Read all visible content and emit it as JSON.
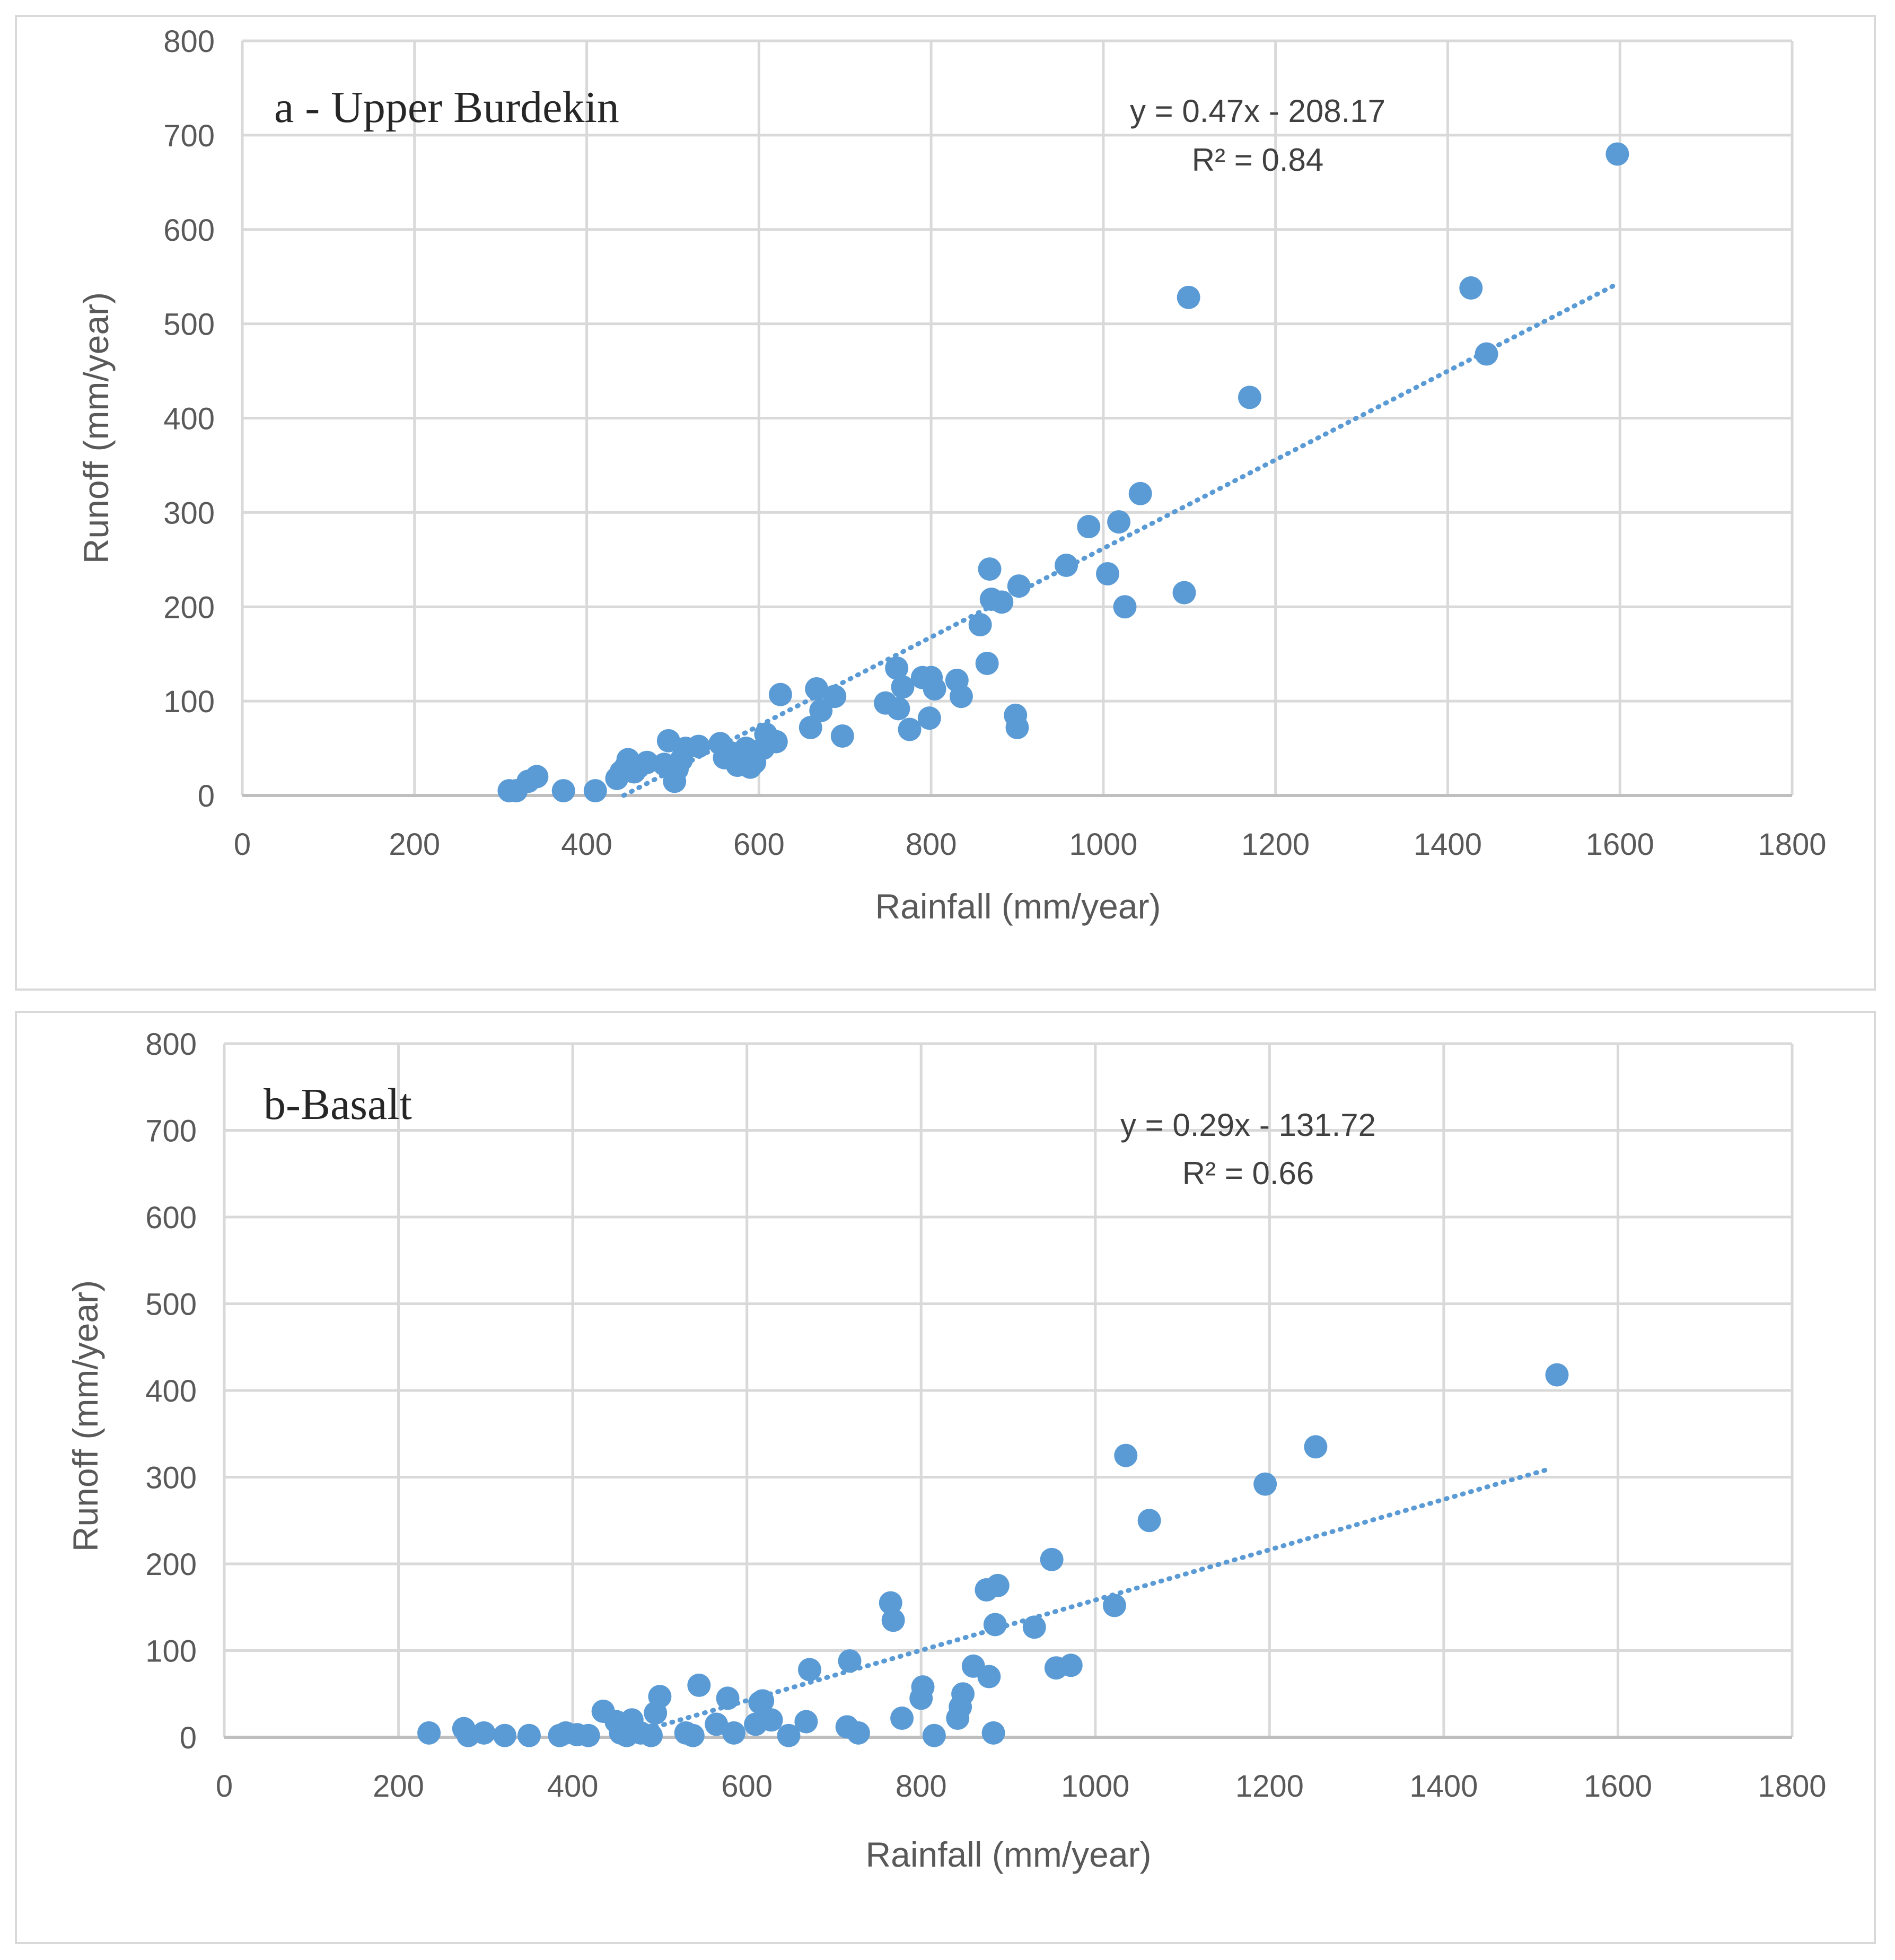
{
  "colors": {
    "point": "#5b9bd5",
    "trend": "#5b9bd5",
    "grid": "#d9d9d9",
    "text": "#595959"
  },
  "chart_data": [
    {
      "type": "scatter",
      "title": "a - Upper Burdekin",
      "xlabel": "Rainfall (mm/year)",
      "ylabel": "Runoff (mm/year)",
      "xlim": [
        0,
        1800
      ],
      "ylim": [
        0,
        800
      ],
      "xticks": [
        0,
        200,
        400,
        600,
        800,
        1000,
        1200,
        1400,
        1600,
        1800
      ],
      "yticks": [
        0,
        100,
        200,
        300,
        400,
        500,
        600,
        700,
        800
      ],
      "xtick_labels": [
        "0",
        "200",
        "400",
        "600",
        "800",
        "1000",
        "1200",
        "1400",
        "1600",
        "1800"
      ],
      "ytick_labels": [
        "0",
        "100",
        "200",
        "300",
        "400",
        "500",
        "600",
        "700",
        "800"
      ],
      "equation": "y = 0.47x - 208.17",
      "r2": "R² = 0.84",
      "trendline": {
        "slope": 0.47,
        "intercept": -208.17,
        "x_range": [
          443,
          1597
        ]
      },
      "x": [
        310,
        318,
        332,
        342,
        373,
        410,
        435,
        440,
        445,
        448,
        455,
        460,
        470,
        490,
        495,
        500,
        502,
        505,
        510,
        515,
        530,
        555,
        560,
        568,
        575,
        580,
        585,
        590,
        595,
        605,
        608,
        620,
        625,
        660,
        667,
        672,
        688,
        697,
        747,
        760,
        762,
        767,
        775,
        790,
        798,
        800,
        804,
        830,
        835,
        857,
        865,
        868,
        870,
        882,
        898,
        900,
        902,
        957,
        983,
        1005,
        1018,
        1025,
        1043,
        1094,
        1099,
        1170,
        1427,
        1445,
        1597
      ],
      "y": [
        5,
        5,
        15,
        20,
        5,
        5,
        18,
        25,
        30,
        38,
        25,
        30,
        35,
        33,
        58,
        30,
        15,
        28,
        38,
        50,
        52,
        55,
        40,
        45,
        32,
        40,
        50,
        30,
        35,
        50,
        65,
        57,
        107,
        72,
        113,
        90,
        105,
        63,
        98,
        135,
        92,
        115,
        70,
        125,
        82,
        125,
        113,
        122,
        105,
        181,
        140,
        240,
        208,
        205,
        85,
        72,
        222,
        244,
        285,
        235,
        290,
        200,
        320,
        215,
        528,
        422,
        538,
        468,
        680
      ]
    },
    {
      "type": "scatter",
      "title": "b-Basalt",
      "xlabel": "Rainfall (mm/year)",
      "ylabel": "Runoff (mm/year)",
      "xlim": [
        0,
        1800
      ],
      "ylim": [
        0,
        800
      ],
      "xticks": [
        0,
        200,
        400,
        600,
        800,
        1000,
        1200,
        1400,
        1600,
        1800
      ],
      "yticks": [
        0,
        100,
        200,
        300,
        400,
        500,
        600,
        700,
        800
      ],
      "xtick_labels": [
        "0",
        "200",
        "400",
        "600",
        "800",
        "1000",
        "1200",
        "1400",
        "1600",
        "1800"
      ],
      "ytick_labels": [
        "0",
        "100",
        "200",
        "300",
        "400",
        "500",
        "600",
        "700",
        "800"
      ],
      "equation": "y = 0.29x - 131.72",
      "r2": "R² = 0.66",
      "trendline": {
        "slope": 0.29,
        "intercept": -131.72,
        "x_range": [
          495,
          1520
        ]
      },
      "x": [
        235,
        275,
        280,
        298,
        322,
        350,
        385,
        392,
        405,
        418,
        435,
        450,
        455,
        462,
        468,
        478,
        490,
        495,
        500,
        530,
        538,
        545,
        565,
        578,
        585,
        610,
        615,
        618,
        628,
        648,
        668,
        672,
        715,
        718,
        728,
        765,
        768,
        778,
        800,
        802,
        815,
        842,
        845,
        848,
        860,
        875,
        878,
        883,
        885,
        888,
        930,
        950,
        955,
        972,
        1022,
        1035,
        1062,
        1195,
        1253,
        1530
      ],
      "y": [
        5,
        10,
        2,
        5,
        2,
        2,
        2,
        5,
        3,
        2,
        30,
        18,
        5,
        2,
        20,
        5,
        2,
        28,
        47,
        5,
        2,
        60,
        15,
        45,
        5,
        15,
        40,
        42,
        20,
        2,
        18,
        78,
        12,
        88,
        5,
        155,
        135,
        22,
        45,
        58,
        2,
        22,
        35,
        50,
        82,
        170,
        70,
        5,
        130,
        175,
        127,
        205,
        80,
        83,
        152,
        325,
        250,
        292,
        335,
        418
      ]
    }
  ]
}
